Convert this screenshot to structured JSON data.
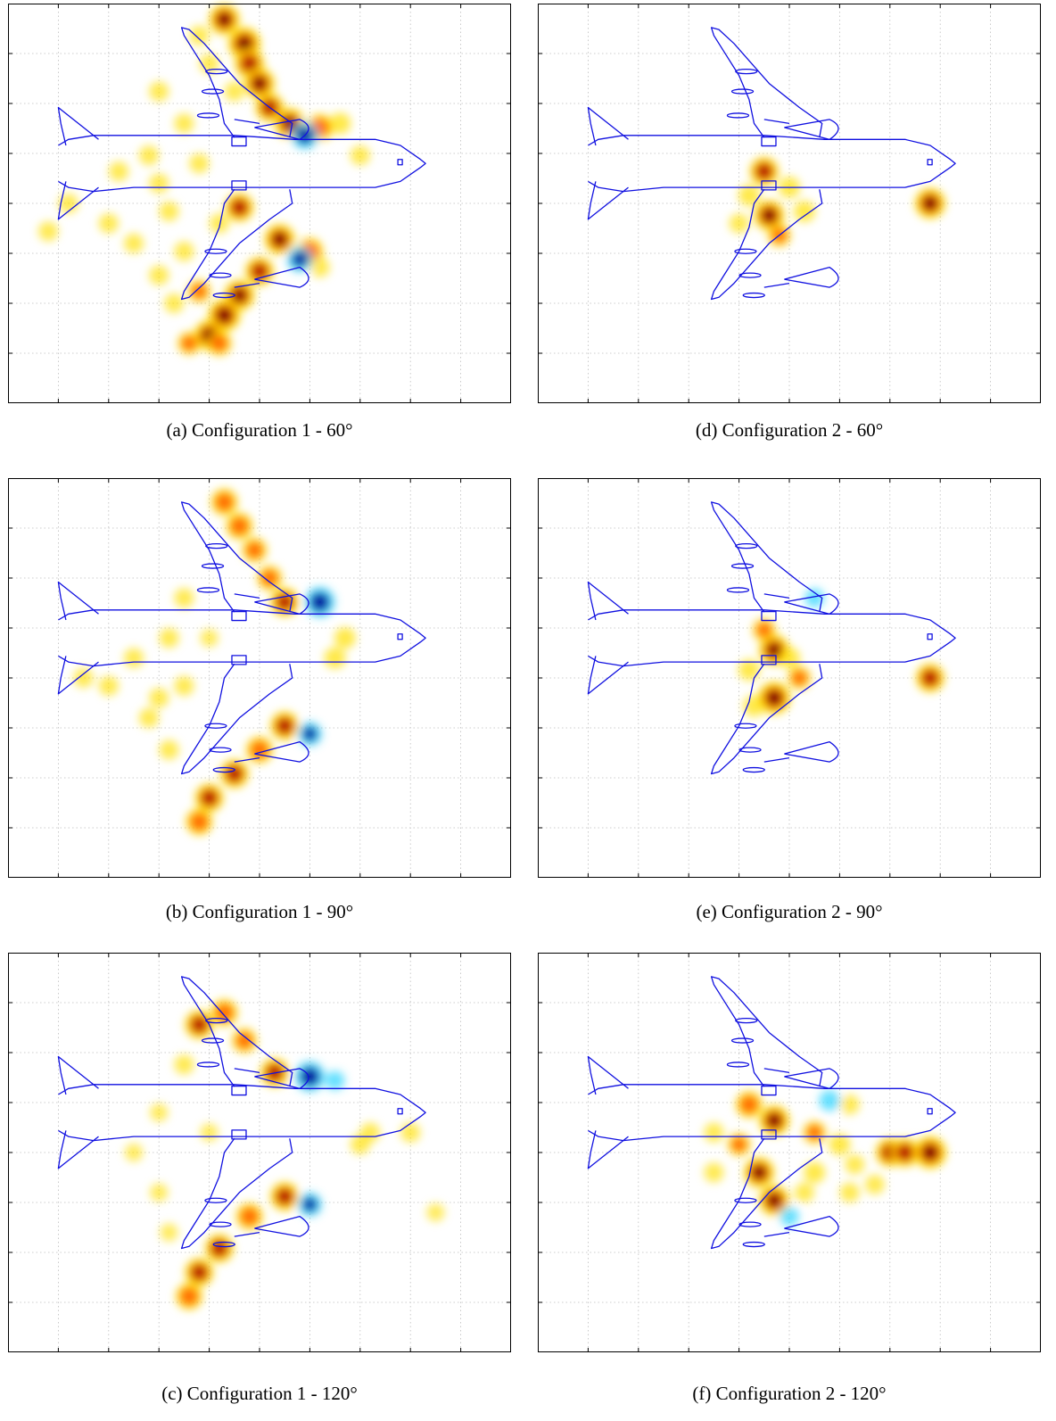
{
  "colors": {
    "outline": "#1010e0",
    "frame": "#000000",
    "grid": "#bdbdbd",
    "hot_low": "#ffe000",
    "hot_mid": "#ff6000",
    "hot_high": "#b01000",
    "hot_peak": "#5a0000",
    "cold_low": "#40d8ff",
    "cold_high": "#0010a0"
  },
  "chart_data": [
    {
      "id": "a",
      "type": "heatmap",
      "caption": "(a)  Configuration 1 - 60°",
      "x_ticks": 10,
      "y_ticks": 8,
      "grid": true,
      "sources": [
        [
          0.43,
          0.04,
          0.9
        ],
        [
          0.47,
          0.1,
          1.0
        ],
        [
          0.48,
          0.15,
          0.85
        ],
        [
          0.5,
          0.2,
          0.9
        ],
        [
          0.52,
          0.26,
          0.8
        ],
        [
          0.56,
          0.3,
          0.9
        ],
        [
          0.62,
          0.31,
          0.7
        ],
        [
          0.59,
          0.33,
          -0.8
        ],
        [
          0.66,
          0.3,
          0.4
        ],
        [
          0.45,
          0.22,
          0.3
        ],
        [
          0.4,
          0.15,
          0.3
        ],
        [
          0.35,
          0.3,
          0.3
        ],
        [
          0.28,
          0.38,
          0.3
        ],
        [
          0.22,
          0.42,
          0.3
        ],
        [
          0.3,
          0.45,
          0.3
        ],
        [
          0.38,
          0.4,
          0.3
        ],
        [
          0.12,
          0.5,
          0.3
        ],
        [
          0.08,
          0.57,
          0.3
        ],
        [
          0.2,
          0.55,
          0.3
        ],
        [
          0.32,
          0.52,
          0.3
        ],
        [
          0.42,
          0.55,
          0.3
        ],
        [
          0.46,
          0.51,
          0.8
        ],
        [
          0.54,
          0.59,
          0.9
        ],
        [
          0.6,
          0.62,
          0.7
        ],
        [
          0.58,
          0.64,
          -0.7
        ],
        [
          0.5,
          0.67,
          0.8
        ],
        [
          0.46,
          0.73,
          0.9
        ],
        [
          0.43,
          0.78,
          1.0
        ],
        [
          0.4,
          0.83,
          0.9
        ],
        [
          0.38,
          0.72,
          0.5
        ],
        [
          0.35,
          0.62,
          0.3
        ],
        [
          0.3,
          0.68,
          0.3
        ],
        [
          0.33,
          0.75,
          0.3
        ],
        [
          0.25,
          0.6,
          0.3
        ],
        [
          0.7,
          0.38,
          0.3
        ],
        [
          0.62,
          0.66,
          0.3
        ],
        [
          0.36,
          0.85,
          0.5
        ],
        [
          0.42,
          0.85,
          0.6
        ],
        [
          0.3,
          0.22,
          0.3
        ],
        [
          0.38,
          0.08,
          0.3
        ]
      ]
    },
    {
      "id": "d",
      "type": "heatmap",
      "caption": "(d)  Configuration 2 - 60°",
      "x_ticks": 10,
      "y_ticks": 8,
      "grid": true,
      "sources": [
        [
          0.45,
          0.42,
          0.8
        ],
        [
          0.46,
          0.53,
          0.9
        ],
        [
          0.42,
          0.48,
          0.4
        ],
        [
          0.5,
          0.46,
          0.4
        ],
        [
          0.53,
          0.52,
          0.4
        ],
        [
          0.4,
          0.55,
          0.3
        ],
        [
          0.48,
          0.58,
          0.5
        ],
        [
          0.78,
          0.5,
          0.9
        ]
      ]
    },
    {
      "id": "b",
      "type": "heatmap",
      "caption": "(b)  Configuration 1 - 90°",
      "x_ticks": 10,
      "y_ticks": 8,
      "grid": true,
      "sources": [
        [
          0.43,
          0.06,
          0.7
        ],
        [
          0.46,
          0.12,
          0.7
        ],
        [
          0.49,
          0.18,
          0.6
        ],
        [
          0.52,
          0.25,
          0.6
        ],
        [
          0.55,
          0.31,
          0.8
        ],
        [
          0.62,
          0.31,
          -1.0
        ],
        [
          0.35,
          0.3,
          0.3
        ],
        [
          0.32,
          0.4,
          0.3
        ],
        [
          0.25,
          0.45,
          0.3
        ],
        [
          0.2,
          0.52,
          0.3
        ],
        [
          0.15,
          0.5,
          0.3
        ],
        [
          0.35,
          0.52,
          0.3
        ],
        [
          0.65,
          0.45,
          0.4
        ],
        [
          0.67,
          0.4,
          0.4
        ],
        [
          0.55,
          0.62,
          0.8
        ],
        [
          0.6,
          0.64,
          -0.6
        ],
        [
          0.5,
          0.68,
          0.7
        ],
        [
          0.45,
          0.74,
          0.8
        ],
        [
          0.4,
          0.8,
          0.8
        ],
        [
          0.38,
          0.86,
          0.7
        ],
        [
          0.32,
          0.68,
          0.3
        ],
        [
          0.28,
          0.6,
          0.3
        ],
        [
          0.3,
          0.55,
          0.3
        ],
        [
          0.4,
          0.4,
          0.2
        ]
      ]
    },
    {
      "id": "e",
      "type": "heatmap",
      "caption": "(e)  Configuration 2 - 90°",
      "x_ticks": 10,
      "y_ticks": 8,
      "grid": true,
      "sources": [
        [
          0.45,
          0.38,
          0.5
        ],
        [
          0.47,
          0.43,
          0.9
        ],
        [
          0.42,
          0.48,
          0.4
        ],
        [
          0.5,
          0.45,
          0.4
        ],
        [
          0.52,
          0.5,
          0.5
        ],
        [
          0.47,
          0.55,
          1.0
        ],
        [
          0.43,
          0.57,
          0.4
        ],
        [
          0.55,
          0.3,
          -0.3
        ],
        [
          0.78,
          0.5,
          0.8
        ]
      ]
    },
    {
      "id": "c",
      "type": "heatmap",
      "caption": "(c)  Configuration 1 - 120°",
      "x_ticks": 10,
      "y_ticks": 8,
      "grid": true,
      "sources": [
        [
          0.38,
          0.18,
          0.8
        ],
        [
          0.43,
          0.15,
          0.7
        ],
        [
          0.47,
          0.22,
          0.6
        ],
        [
          0.53,
          0.3,
          0.8
        ],
        [
          0.6,
          0.31,
          -1.0
        ],
        [
          0.65,
          0.32,
          -0.3
        ],
        [
          0.35,
          0.28,
          0.3
        ],
        [
          0.3,
          0.4,
          0.2
        ],
        [
          0.25,
          0.5,
          0.2
        ],
        [
          0.72,
          0.45,
          0.3
        ],
        [
          0.7,
          0.48,
          0.3
        ],
        [
          0.8,
          0.45,
          0.3
        ],
        [
          0.55,
          0.61,
          0.8
        ],
        [
          0.6,
          0.63,
          -0.6
        ],
        [
          0.48,
          0.66,
          0.7
        ],
        [
          0.42,
          0.74,
          0.8
        ],
        [
          0.38,
          0.8,
          0.8
        ],
        [
          0.36,
          0.86,
          0.7
        ],
        [
          0.3,
          0.6,
          0.2
        ],
        [
          0.32,
          0.7,
          0.2
        ],
        [
          0.85,
          0.65,
          0.2
        ],
        [
          0.4,
          0.45,
          0.2
        ]
      ]
    },
    {
      "id": "f",
      "type": "heatmap",
      "caption": "(f)  Configuration 2 - 120°",
      "x_ticks": 10,
      "y_ticks": 8,
      "grid": true,
      "sources": [
        [
          0.42,
          0.38,
          0.7
        ],
        [
          0.47,
          0.42,
          0.9
        ],
        [
          0.4,
          0.48,
          0.5
        ],
        [
          0.44,
          0.55,
          0.9
        ],
        [
          0.47,
          0.62,
          0.9
        ],
        [
          0.55,
          0.45,
          0.5
        ],
        [
          0.6,
          0.48,
          0.4
        ],
        [
          0.55,
          0.55,
          0.4
        ],
        [
          0.63,
          0.53,
          0.3
        ],
        [
          0.62,
          0.6,
          0.3
        ],
        [
          0.67,
          0.58,
          0.3
        ],
        [
          0.7,
          0.5,
          0.8
        ],
        [
          0.73,
          0.5,
          0.8
        ],
        [
          0.78,
          0.5,
          1.0
        ],
        [
          0.58,
          0.37,
          -0.4
        ],
        [
          0.5,
          0.66,
          -0.3
        ],
        [
          0.62,
          0.38,
          0.3
        ],
        [
          0.35,
          0.45,
          0.3
        ],
        [
          0.35,
          0.55,
          0.3
        ],
        [
          0.53,
          0.6,
          0.3
        ]
      ]
    }
  ]
}
